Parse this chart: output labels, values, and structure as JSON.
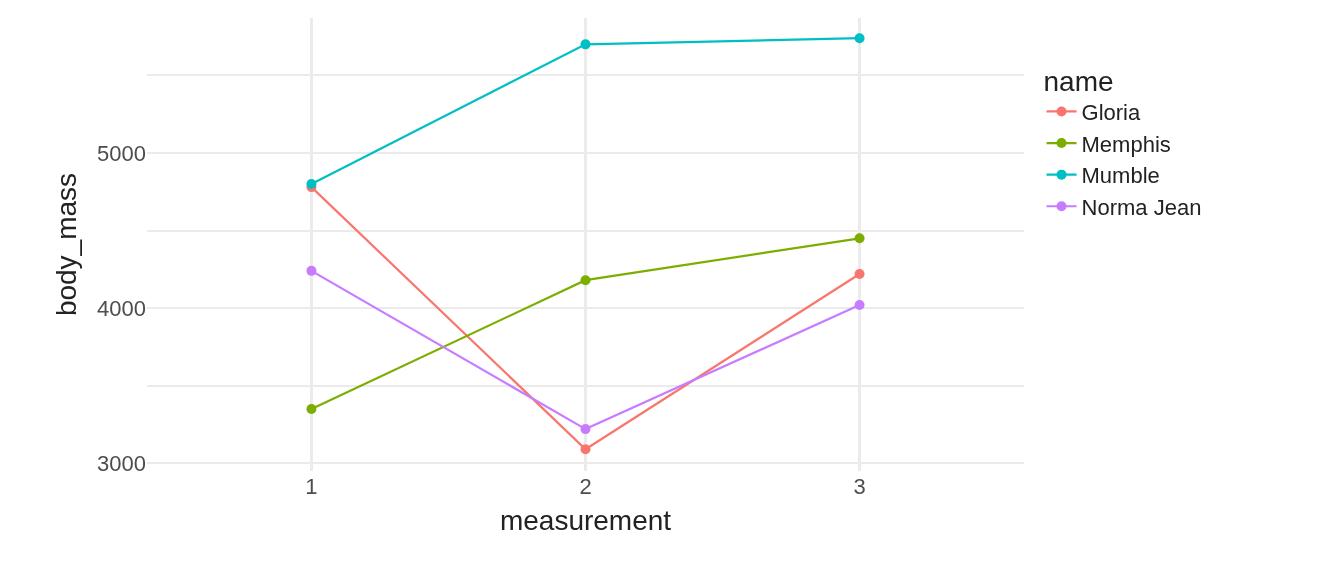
{
  "chart_data": {
    "type": "line",
    "xlabel": "measurement",
    "ylabel": "body_mass",
    "legend_title": "name",
    "x": [
      1,
      2,
      3
    ],
    "series": [
      {
        "name": "Gloria",
        "color": "#f8766d",
        "values": [
          4780,
          3090,
          4220
        ]
      },
      {
        "name": "Memphis",
        "color": "#7cae00",
        "values": [
          3350,
          4180,
          4450
        ]
      },
      {
        "name": "Mumble",
        "color": "#00bfc4",
        "values": [
          4800,
          5700,
          5740
        ]
      },
      {
        "name": "Norma Jean",
        "color": "#c77cff",
        "values": [
          4240,
          3220,
          4020
        ]
      }
    ],
    "xlim": [
      0.4,
      3.6
    ],
    "xticks": [
      1,
      2,
      3
    ],
    "ylim": [
      2950,
      5870
    ],
    "yticks": [
      3000,
      {
        "value": 3500,
        "label": null
      },
      4000,
      {
        "value": 4500,
        "label": null
      },
      5000,
      {
        "value": 5500,
        "label": null
      }
    ],
    "grid": true,
    "legend": "right",
    "marker": "circle",
    "line_style": "solid"
  }
}
